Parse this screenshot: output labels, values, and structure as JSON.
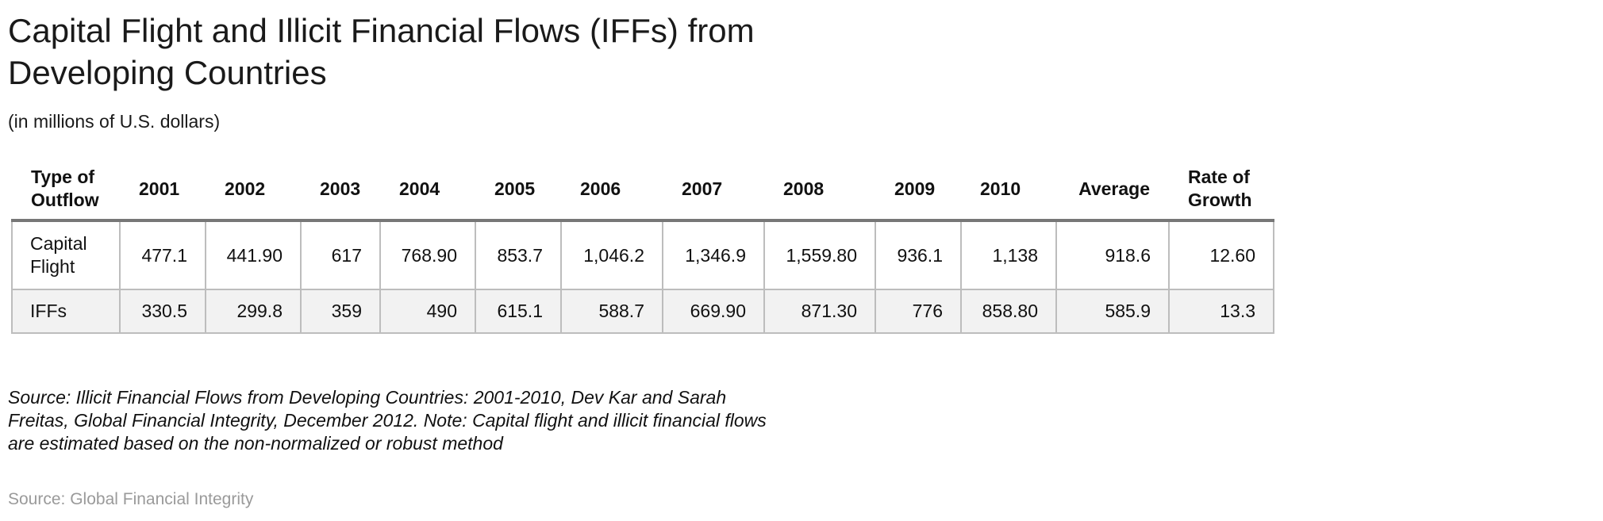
{
  "chart_data": {
    "type": "table",
    "title": "Capital Flight and Illicit Financial Flows (IFFs) from Developing Countries",
    "subtitle": "(in millions of U.S. dollars)",
    "columns": [
      "Type of Outflow",
      "2001",
      "2002",
      "2003",
      "2004",
      "2005",
      "2006",
      "2007",
      "2008",
      "2009",
      "2010",
      "Average",
      "Rate of Growth"
    ],
    "rows": [
      [
        "Capital Flight",
        "477.1",
        "441.90",
        "617",
        "768.90",
        "853.7",
        "1,046.2",
        "1,346.9",
        "1,559.80",
        "936.1",
        "1,138",
        "918.6",
        "12.60"
      ],
      [
        "IFFs",
        "330.5",
        "299.8",
        "359",
        "490",
        "615.1",
        "588.7",
        "669.90",
        "871.30",
        "776",
        "858.80",
        "585.9",
        "13.3"
      ]
    ],
    "note": "Source: Illicit Financial Flows from Developing Countries: 2001-2010, Dev Kar and Sarah Freitas, Global Financial Integrity, December 2012. Note: Capital flight and illicit financial flows are estimated based on the non-normalized or robust method",
    "source": "Source: Global Financial Integrity"
  },
  "colors": {
    "header_rule": "#777777",
    "cell_border": "#bdbdbd",
    "alt_row": "#f2f2f2",
    "source_text": "#9a9a9a"
  }
}
